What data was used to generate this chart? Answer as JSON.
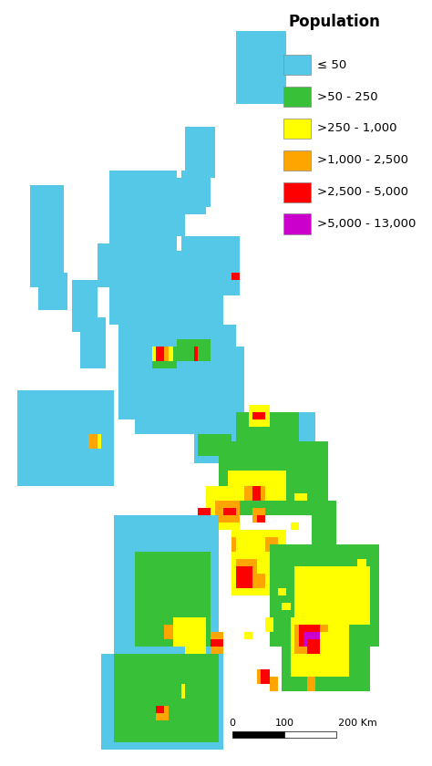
{
  "title": "Population",
  "legend_items": [
    {
      "label": "≤ 50",
      "color": "#55C8E8"
    },
    {
      "label": ">50 - 250",
      "color": "#38C138"
    },
    {
      "label": ">250 - 1,000",
      "color": "#FFFF00"
    },
    {
      "label": ">1,000 - 2,500",
      "color": "#FFA500"
    },
    {
      "label": ">2,500 - 5,000",
      "color": "#FF0000"
    },
    {
      "label": ">5,000 - 13,000",
      "color": "#CC00CC"
    }
  ],
  "background_color": "#FFFFFF",
  "legend_title_fontsize": 12,
  "legend_label_fontsize": 9.5,
  "figsize": [
    4.74,
    8.4
  ],
  "dpi": 100
}
